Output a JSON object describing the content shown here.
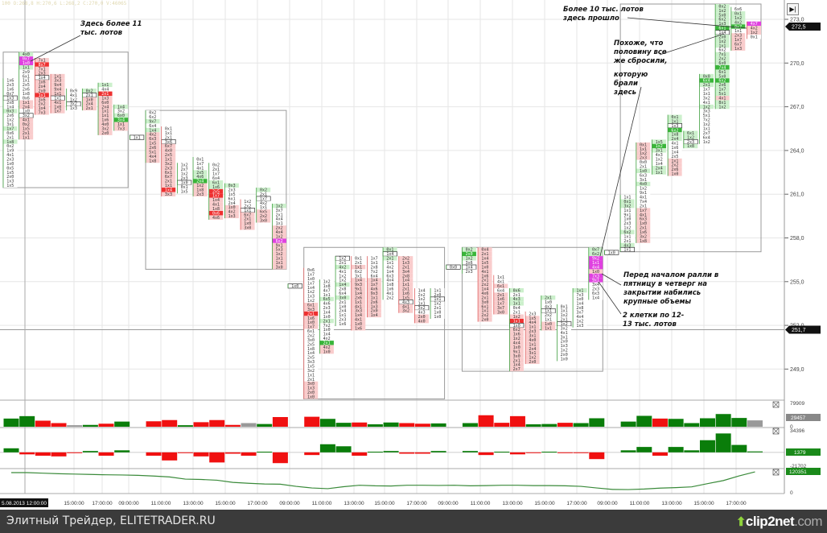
{
  "info_line": "100 O:268,8 H:270,6 L:268,2 C:270,0 V:46065",
  "annotations": {
    "a1": "Здесь более 11 тыс. лотов",
    "a2": "Более 10 тыс. лотов здесь прошло",
    "a3": "Похоже, что половину все же сбросили,",
    "a4": "которую брали здесь",
    "a5": "Перед началом ралли в пятницу в четверг на закрытии набились крупные объемы",
    "a6": "2 клетки по 12-13 тыс. лотов"
  },
  "footer": {
    "source": "Элитный Трейдер, ELITETRADER.RU",
    "logo_main": "clip2net",
    "logo_suffix": ".com"
  },
  "end_button_icon": "go-to-end-icon",
  "colors": {
    "up": "#0a7d0a",
    "down": "#f01010",
    "neutral": "#999999",
    "cum_line": "#3a8a3a",
    "magenta": "#e040e0"
  },
  "chart_data": [
    {
      "type": "footprint",
      "price_axis": {
        "ticks": [
          "273,0",
          "270,0",
          "267,0",
          "264,0",
          "261,0",
          "258,0",
          "255,0",
          "252,0",
          "249,0"
        ],
        "tags": [
          "272,5",
          "251,7"
        ],
        "ylim": [
          247,
          274
        ]
      },
      "time_axis": {
        "first_label": "5.08.2013 12:00:00",
        "labels": [
          "15:00:00",
          "17:00:00",
          "09:00:00",
          "11:00:00",
          "13:00:00",
          "15:00:00",
          "17:00:00",
          "09:00:00",
          "11:00:00",
          "13:00:00",
          "15:00:00",
          "17:00:00",
          "09:00:00",
          "11:00:00",
          "13:00:00",
          "15:00:00",
          "17:00:00",
          "09:00:00",
          "11:00:00",
          "13:00:00",
          "15:00:00",
          "17:00:00"
        ]
      },
      "tick_size": 0.3,
      "days": [
        [
          0,
          7
        ],
        [
          9,
          17
        ],
        [
          19,
          27
        ],
        [
          29,
          37
        ],
        [
          39,
          47
        ]
      ],
      "horizontal_level": 251.7,
      "columns": [
        {
          "hi": 268.8,
          "cells": "1x6 2x3 1x6 0x7 1x3 2x8 1x4 0x3 2x6 1x2 3x1 1x7 0x6 2x1 1x8 0x2 1x9 4x1 2x3 1x0 0x5 1x5 2x0 1x3 1x5",
          "shade": "wwwwbwwgwwwgwwgwwwwwwwwww"
        },
        {
          "hi": 270.6,
          "cells": "4x0 0x7 1x0 1x1 2x9 6x1 1x1 2x5 2x6 1x8 0x6 1x1 2x4 1x0 3x2 4x1 0x2 1x5 2x1 1x1",
          "shade": "gmmgwwwwwwwrrwbrrrrr"
        },
        {
          "hi": 270.2,
          "cells": "7x1 8x7 7x1 2x3 1x4 1x6 2x4 2x0 1x1 3x6 2x2 1x4 7x3",
          "shade": "rRrrbrrrRrrrr"
        },
        {
          "hi": 269.1,
          "cells": "1x1 3x3 9x4 9x4 1x1 1x1 4x1 1x0 1x7",
          "shade": "rrrrrbrrr"
        },
        {
          "hi": 268.1,
          "cells": "0x9 4x1 1x2 3x2 1x3",
          "shade": "wwwbw"
        },
        {
          "hi": 268.1,
          "cells": "0x2 2x1 1x0 2x4 2x1",
          "shade": "gbrrr"
        },
        {
          "hi": 268.5,
          "cells": "1x1 4x4 2x1 1x3 6x0 2x4 1x1 1x1 1x6 4x0 3x2 2x0",
          "shade": "gwRrrrrrrrrr"
        },
        {
          "hi": 267.0,
          "cells": "1x4 3x2 6x0 3x4 1x1 7x3",
          "shade": "gwgGrr"
        },
        {
          "hi": 264.9,
          "cells": "1x1",
          "shade": "b"
        },
        {
          "hi": 266.6,
          "cells": "0x2 6x2 9x7 6x4 1x4 4x2 6x3 1x5 2x6 5x1 4x4 1x8",
          "shade": "wwgwgrrrrrrr"
        },
        {
          "hi": 265.5,
          "cells": "0x1 1x1 2x1 3x6 6x7 4x0 2x5 1x1 3x2 2x3 6x1 6x7 2x1 1x1 1x4 3x3",
          "shade": "wwwbrrrrrrrrrrRr"
        },
        {
          "hi": 263.0,
          "cells": "1x2 2x7 1x2 2x3 1x0 0x1 1x5",
          "shade": "wwwwbww"
        },
        {
          "hi": 263.4,
          "cells": "0x1 1x7 4x1 2x5 4x6 2x4 1x2 1x8 2x3",
          "shade": "wwwggGrrr"
        },
        {
          "hi": 263.0,
          "cells": "0x2 2x1 1x7 6x4 6x1 1x6 2x5 1x7 1x4 4x1 1x8 0x6 4x6",
          "shade": "wwwwggRRrrrRr"
        },
        {
          "hi": 261.6,
          "cells": "0x3 2x3 1x5 6x1 2x4 1x0 4x2 1x3",
          "shade": "gwwwwrrr"
        },
        {
          "hi": 260.5,
          "cells": "1x2 2x2 1x1 6x7 2x1 1x0 3x0",
          "shade": "wwbrrrr"
        },
        {
          "hi": 261.3,
          "cells": "0x2 2x1 1x7 4x2 1x1 6x5 2x2 3x0",
          "shade": "gwbwwrrr"
        },
        {
          "hi": 260.2,
          "cells": "1x2 3x7 2x1 4x4 1x1 2x2 4x4 1x2 6x2 9x1 5x3 1x2 1x1 1x1 3x0",
          "shade": "gwwwwrrrmrrrrrr"
        },
        {
          "hi": 254.7,
          "cells": "1x0",
          "shade": "b"
        },
        {
          "hi": 255.8,
          "cells": "0x6 1x7 1x0 1x7 1x4 1x2 1x3 1x2 6x1 3x3 2x1 1x6 1x0 1x7 6x1 2x2 3x0 2x5 1x8 1x4 2x5 3x3 1x5 3x2 1x1 2x1 3x0 1x3 2x0 1x0",
          "shade": "wwwwwwwwrrRrrrwwwwwwwwwwwwrrrr"
        },
        {
          "hi": 255.0,
          "cells": "1x2 1x8 4x7 1x1 6x5 4x6 2x3 1x4 1x0 2x1 7x2 1x0 1x4 4x2 2x1 4x2 1x0",
          "shade": "wwwwgwwwwgwwwwGrr"
        },
        {
          "hi": 256.6,
          "cells": "1x2 2x1 4x2 4x1 1x2 1x2 1x4 2x8 6x4 3x0 2x1 1x0 2x4 1x1 2x3 1x6",
          "shade": "bwgwwwgwwgwwwwww"
        },
        {
          "hi": 256.6,
          "cells": "0x1 2x1 1x1 6x2 3x1 1x4 9x3 9x1 1x4 2x6 1x1 4x1 3x3 1x4 4x1 1x0 1x6",
          "shade": "wwrwwrrrrrrrrrrrr"
        },
        {
          "hi": 256.6,
          "cells": "1x7 1x1 2x8 7x2 6x4 1x4 1x7 4x6 9x3 1x1 2x6 1x3 2x0 1x4",
          "shade": "wwwwwrrrrrrrrr"
        },
        {
          "hi": 257.2,
          "cells": "0x1 1x4 2x1 1x1 4x2 1x4 6x3 4x4 1x8 1x6 4x1 2x2",
          "shade": "gbgwwwwwwwww"
        },
        {
          "hi": 256.6,
          "cells": "2x2 1x3 2x1 3x4 2x8 1x4 1x1 2x1 1x6 1x5 4x3 4x1 3x2",
          "shade": "rrrrrrrrrrbrr"
        },
        {
          "hi": 254.4,
          "cells": "1x4 2x2 1x2 1x1 3x2 4x3 2x0 4x0",
          "shade": "wwwwbwrr"
        },
        {
          "hi": 254.4,
          "cells": "1x1 2x0 1x1 1x2 2x1 1x0 1x0",
          "shade": "wwbwwww"
        },
        {
          "hi": 256.0,
          "cells": "0x0",
          "shade": "b"
        },
        {
          "hi": 257.2,
          "cells": "0x2 2x0 1x2 3x6 1x4 2x3",
          "shade": "gGgwbw"
        },
        {
          "hi": 257.2,
          "cells": "0x4 2x1 1x4 1x5 1x0 4x1 1x6 2x1 2x2 1x4 4x6 2x1 3x0 6x1 1x1 2x2 2x0",
          "shade": "rrrrrrrrrrrrrrrrr"
        },
        {
          "hi": 255.3,
          "cells": "1x1 4x1 6x1 6x4 2x1 1x6 1x7 3x7 3x0",
          "shade": "wwrwrrrrr"
        },
        {
          "hi": 254.4,
          "cells": "0x6 2x1 4x3 1x1 0x4 2x1 1x2 1x1 1x0 6x2 1x6 1x2 4x4 1x0 9x1 3x0 2x1 1x4 2x7",
          "shade": "gwggwwrRbrrrrrrrrrr"
        },
        {
          "hi": 252.8,
          "cells": "2x3 1x5 4x4 1x1 2x3 3x1 4x0 1x1 2x4 3x1 1x2 2x0",
          "shade": "wrrrrrrrrrrr"
        },
        {
          "hi": 253.9,
          "cells": "2x1 1x0 4x3 1x1 2x2 1x1 1x0 1x1",
          "shade": "gwwbwwrr"
        },
        {
          "hi": 253.3,
          "cells": "0x1 1x1 1x2 2x1 1x2 3x2 4x1 3x1 2x0 1x3 1x2 2x0 1x0",
          "shade": "wwwwbwwwwwwww"
        },
        {
          "hi": 254.4,
          "cells": "1x1 7x3 1x0 1x4 2x8 3x7 4x4 1x2 1x3",
          "shade": "gwwwwwwww"
        },
        {
          "hi": 257.2,
          "cells": "0x7 6x2 9x2 1x1 4x4 1x0 7x3 9x1 3x4 2x3 6x3 1x4",
          "shade": "ggmmmrmmwwww"
        },
        {
          "hi": 257.0,
          "cells": "1x0",
          "shade": "b"
        },
        {
          "hi": 260.8,
          "cells": "1x1 0x1 3x2 1x1 9x1 1x0 2x3 1x2 6x2 1x1 2x1 4x3 1x1",
          "shade": "wggwwwwwgwwgb"
        },
        {
          "hi": 264.4,
          "cells": "0x1 1x1 1x2 2x3 0x0 2x1 1x0 6x3 3x1 4x0 1x2 9x1 4x1 7x4 2x1 1x7 4x1 6x3 1x0 2x1 1x6 3x2 1x8",
          "shade": "rrrrwwgwwgwwwwwrrrrrrrr"
        },
        {
          "hi": 264.6,
          "cells": "1x5 1x2 3x1 4x3 1x2 1x4 2x4 1x1",
          "shade": "gGgwwwgg"
        },
        {
          "hi": 266.3,
          "cells": "0x1 1x1 1x3 6x2 1x8 2x4 4x1 1x6 1x4 2x5 1x1 2x2 2x6 1x0",
          "shade": "ggbGggwwwwrrrr"
        },
        {
          "hi": 265.2,
          "cells": "6x1 1x2 2x3 1x8",
          "shade": "ggbg"
        },
        {
          "hi": 269.1,
          "cells": "0x0 6x4 2x1 1x7 1x1 3x2 4x1 1x2 3x3 5x1 7x2 1x2 1x1 2x7 6x4 1x2",
          "shade": "gGgwwwwgwwwwwwww"
        },
        {
          "hi": 273.9,
          "cells": "0x2 1x2 5x0 6x2 1x3 6x1 1x4 2x0 1x2 1x1 6x2 7x1 2x2 6x0 7x4 6x1 5x0 6x2 2x6 1x7 5x1 4x1 8x1 1x2",
          "shade": "gggggGbgggwgggGggGgggrgg"
        },
        {
          "hi": 273.7,
          "cells": "6x6 0x1 1x2 4x2 0x7 1x1 2x3 1x7 6x7 1x3",
          "shade": "wgggGwrrrr"
        },
        {
          "hi": 272.7,
          "cells": "4x7 4x2 1x2 0x1",
          "shade": "mrrw"
        }
      ]
    },
    {
      "type": "bar",
      "panel": "volume",
      "ylim": [
        0,
        79909
      ],
      "axis_labels": [
        "79909",
        "0"
      ],
      "last_value_tag": "29457",
      "values": [
        27000,
        35000,
        20000,
        12000,
        5000,
        6000,
        10000,
        17000,
        null,
        18000,
        22000,
        5000,
        15000,
        22000,
        6000,
        12000,
        9000,
        32000,
        null,
        33000,
        26000,
        13000,
        14000,
        8000,
        14000,
        12000,
        10000,
        11000,
        null,
        12000,
        38000,
        13000,
        35000,
        8000,
        9000,
        13000,
        12000,
        28000,
        null,
        17000,
        36000,
        27000,
        26000,
        12000,
        28000,
        42000,
        29000,
        21000
      ],
      "colors": "ggrrxgrg_rrgrrrxgr_rggrggrrg_grrrggrgg_ggrgggggx"
    },
    {
      "type": "bar",
      "panel": "delta",
      "ylim": [
        -21702,
        34396
      ],
      "axis_labels": [
        "34396",
        "-21702"
      ],
      "last_value_tag": "1379",
      "values": [
        6000,
        -3000,
        -5000,
        -6000,
        -1000,
        2000,
        -5000,
        3000,
        null,
        -5000,
        -12000,
        -1000,
        -6000,
        -15000,
        -2000,
        -5000,
        1000,
        -16000,
        null,
        -4000,
        12000,
        9000,
        -5000,
        1000,
        2000,
        -2000,
        -2000,
        2000,
        null,
        2000,
        -4000,
        1000,
        -3000,
        -1000,
        1000,
        -1000,
        -1000,
        -10000,
        null,
        3000,
        8000,
        -5000,
        8000,
        3000,
        18000,
        28000,
        11000,
        1379
      ]
    },
    {
      "type": "line",
      "panel": "cumulative",
      "ylim": [
        0,
        125000
      ],
      "axis_labels": [
        "0"
      ],
      "last_value_tag": "120351",
      "values": [
        116000,
        116000,
        113000,
        110000,
        108000,
        106000,
        104000,
        103000,
        101000,
        97000,
        92000,
        80000,
        78000,
        74000,
        62000,
        57000,
        53000,
        52000,
        40000,
        31000,
        27000,
        38000,
        46000,
        43000,
        42000,
        46000,
        46000,
        45000,
        46000,
        43000,
        44000,
        46000,
        46000,
        44000,
        44000,
        43000,
        40000,
        31000,
        23000,
        22000,
        25000,
        30000,
        33000,
        37000,
        55000,
        72000,
        98000,
        120351
      ]
    }
  ]
}
